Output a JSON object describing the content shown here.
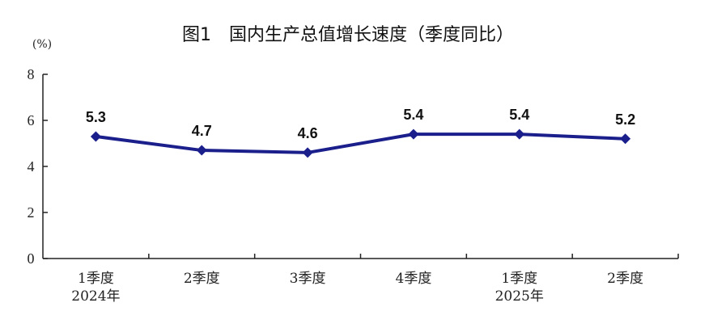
{
  "chart_data": {
    "type": "line",
    "title": "图1　国内生产总值增长速度（季度同比）",
    "y_unit": "(%)",
    "categories": [
      [
        "1季度",
        "2024年"
      ],
      [
        "2季度",
        ""
      ],
      [
        "3季度",
        ""
      ],
      [
        "4季度",
        ""
      ],
      [
        "1季度",
        "2025年"
      ],
      [
        "2季度",
        ""
      ]
    ],
    "values": [
      5.3,
      4.7,
      4.6,
      5.4,
      5.4,
      5.2
    ],
    "data_labels": [
      "5.3",
      "4.7",
      "4.6",
      "5.4",
      "5.4",
      "5.2"
    ],
    "ylim": [
      0,
      8
    ],
    "yticks": [
      "0",
      "2",
      "4",
      "6",
      "8"
    ],
    "grid": false,
    "colors": {
      "line": "#1a1f8c",
      "axis": "#222222"
    }
  }
}
